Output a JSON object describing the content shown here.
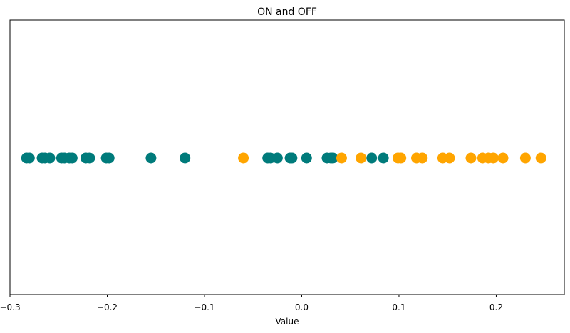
{
  "chart_data": {
    "type": "scatter",
    "title": "ON and OFF",
    "xlabel": "Value",
    "ylabel": "",
    "xlim": [
      -0.3,
      0.27
    ],
    "xticks": [
      -0.3,
      -0.2,
      -0.1,
      0.0,
      0.1,
      0.2
    ],
    "xtick_labels": [
      "−0.3",
      "−0.2",
      "−0.1",
      "0.0",
      "0.1",
      "0.2"
    ],
    "grid": false,
    "y_value": 0,
    "series": [
      {
        "color": "#007b7b",
        "x": [
          -0.283,
          -0.28,
          -0.267,
          -0.264,
          -0.259,
          -0.247,
          -0.244,
          -0.239,
          -0.236,
          -0.222,
          -0.218,
          -0.201,
          -0.198,
          -0.155,
          -0.12,
          -0.035,
          -0.032,
          -0.025,
          -0.012,
          -0.01,
          0.005,
          0.026,
          0.03,
          0.032,
          0.072,
          0.084
        ]
      },
      {
        "color": "#ffa500",
        "x": [
          -0.06,
          0.041,
          0.061,
          0.099,
          0.102,
          0.118,
          0.124,
          0.145,
          0.152,
          0.174,
          0.186,
          0.192,
          0.197,
          0.207,
          0.23,
          0.246
        ]
      }
    ]
  }
}
